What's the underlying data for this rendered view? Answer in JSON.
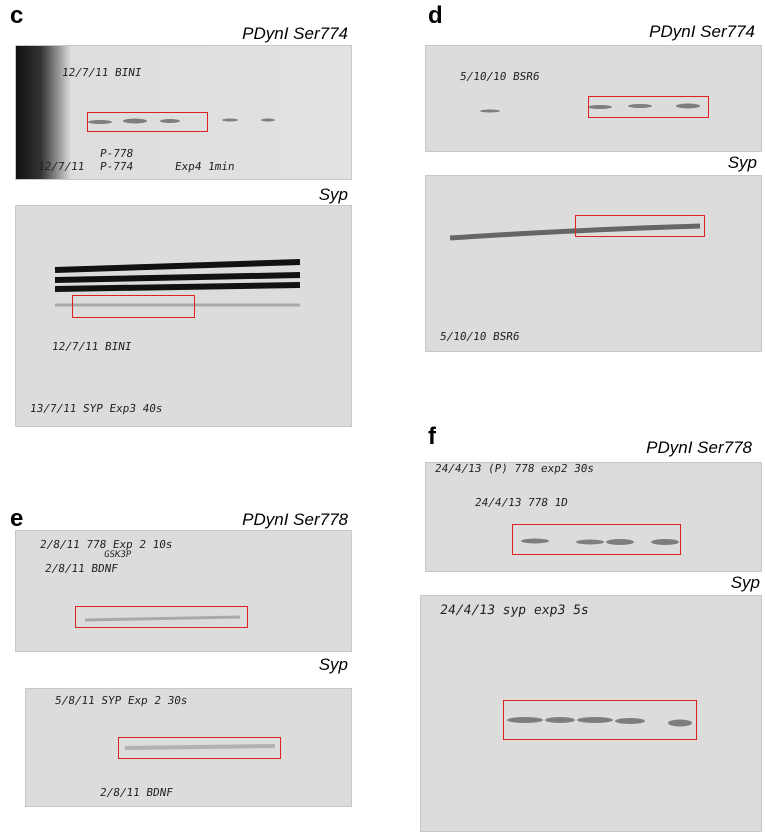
{
  "panels": [
    {
      "letter": "c",
      "blots": [
        {
          "label": "PDynI Ser774",
          "notes": [
            "12/7/11 BINI",
            "12/7/11",
            "P-778",
            "P-774",
            "Exp4 1min"
          ]
        },
        {
          "label": "Syp",
          "notes": [
            "12/7/11 BINI",
            "13/7/11 SYP Exp3 40s"
          ]
        }
      ]
    },
    {
      "letter": "d",
      "blots": [
        {
          "label": "PDynI Ser774",
          "notes": [
            "5/10/10 BSR6"
          ]
        },
        {
          "label": "Syp",
          "notes": [
            "5/10/10 BSR6"
          ]
        }
      ]
    },
    {
      "letter": "e",
      "blots": [
        {
          "label": "PDynI Ser778",
          "notes": [
            "2/8/11 778 Exp 2 10s",
            "GSK3P",
            "2/8/11 BDNF"
          ]
        },
        {
          "label": "Syp",
          "notes": [
            "5/8/11 SYP Exp 2 30s",
            "2/8/11 BDNF"
          ]
        }
      ]
    },
    {
      "letter": "f",
      "blots": [
        {
          "label": "PDynI Ser778",
          "notes": [
            "24/4/13 (P) 778 exp2 30s",
            "24/4/13 778 1D"
          ]
        },
        {
          "label": "Syp",
          "notes": [
            "24/4/13 syp exp3 5s"
          ]
        }
      ]
    }
  ]
}
